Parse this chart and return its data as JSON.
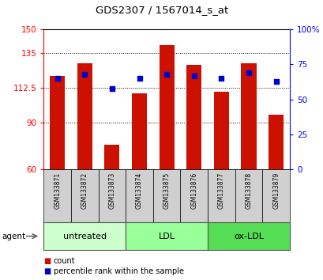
{
  "title": "GDS2307 / 1567014_s_at",
  "samples": [
    "GSM133871",
    "GSM133872",
    "GSM133873",
    "GSM133874",
    "GSM133875",
    "GSM133876",
    "GSM133877",
    "GSM133878",
    "GSM133879"
  ],
  "counts": [
    120,
    128,
    76,
    109,
    140,
    127,
    110,
    128,
    95
  ],
  "percentiles": [
    65,
    68,
    58,
    65,
    68,
    67,
    65,
    69,
    63
  ],
  "groups": [
    {
      "label": "untreated",
      "start": 0,
      "end": 3,
      "color": "#ccffcc"
    },
    {
      "label": "LDL",
      "start": 3,
      "end": 6,
      "color": "#99ff99"
    },
    {
      "label": "ox-LDL",
      "start": 6,
      "end": 9,
      "color": "#55dd55"
    }
  ],
  "ylim_left": [
    60,
    150
  ],
  "ylim_right": [
    0,
    100
  ],
  "yticks_left": [
    60,
    90,
    112.5,
    135,
    150
  ],
  "yticks_right": [
    0,
    25,
    50,
    75,
    100
  ],
  "bar_color": "#cc1100",
  "dot_color": "#0000cc",
  "bar_width": 0.55,
  "agent_label": "agent"
}
